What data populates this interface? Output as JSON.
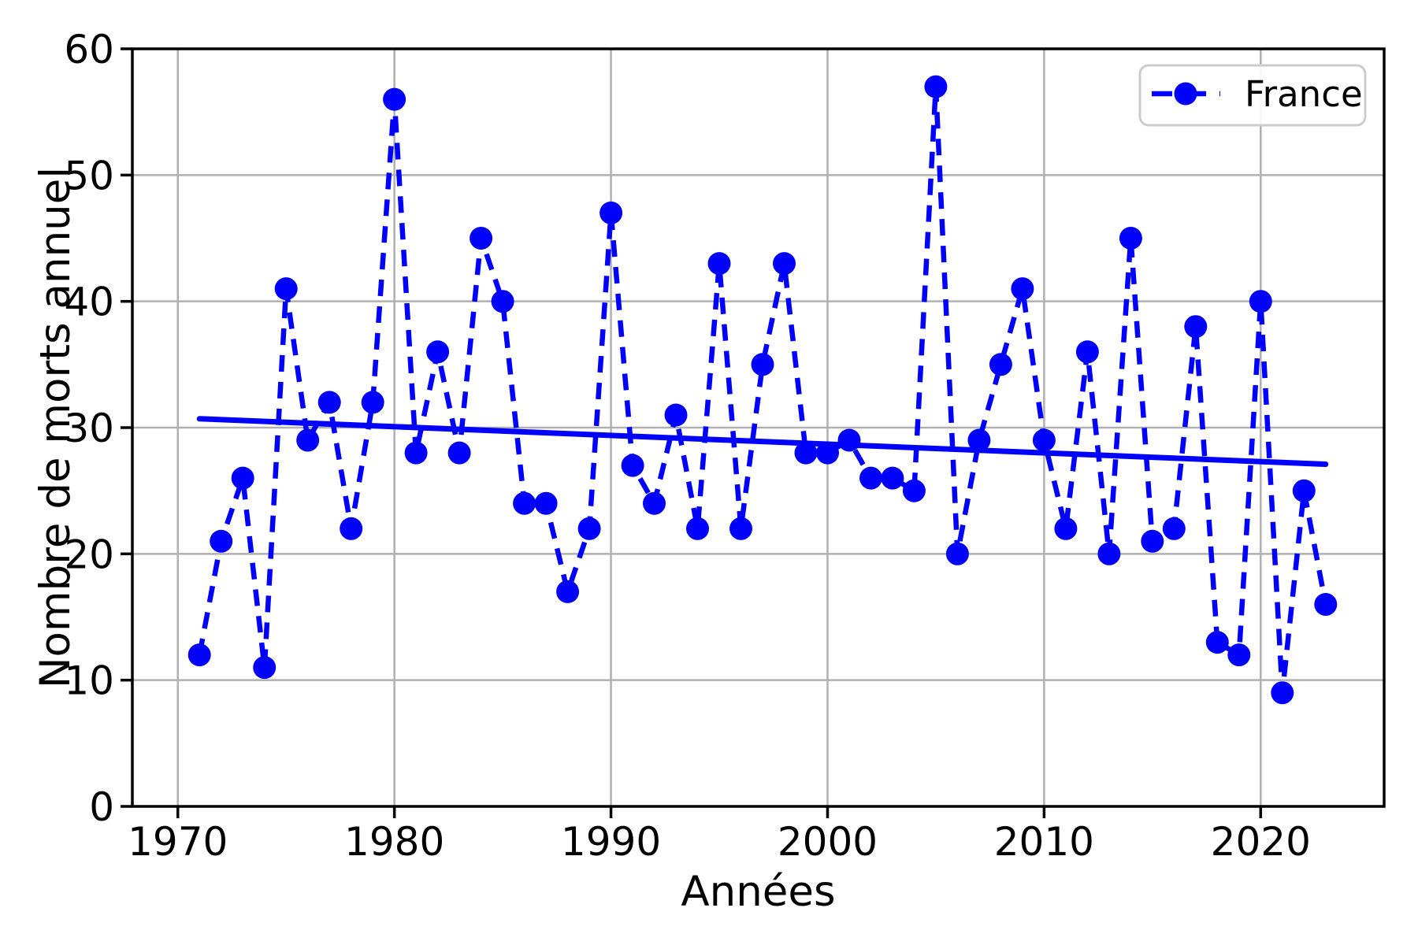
{
  "chart_data": {
    "type": "line",
    "title": "",
    "xlabel": "Années",
    "ylabel": "Nombre de morts annuel",
    "grid": true,
    "xlim": [
      1967.9,
      2025.7
    ],
    "ylim": [
      0,
      60
    ],
    "xticks": [
      1970,
      1980,
      1990,
      2000,
      2010,
      2020
    ],
    "yticks": [
      0,
      10,
      20,
      30,
      40,
      50,
      60
    ],
    "legend": {
      "position": "upper-right",
      "entries": [
        {
          "label": "France",
          "marker": "circle",
          "linestyle": "dashed",
          "color": "#0000ff"
        }
      ]
    },
    "series": [
      {
        "name": "France",
        "linestyle": "dashed",
        "marker": "circle",
        "color": "#0000ff",
        "x": [
          1971,
          1972,
          1973,
          1974,
          1975,
          1976,
          1977,
          1978,
          1979,
          1980,
          1981,
          1982,
          1983,
          1984,
          1985,
          1986,
          1987,
          1988,
          1989,
          1990,
          1991,
          1992,
          1993,
          1994,
          1995,
          1996,
          1997,
          1998,
          1999,
          2000,
          2001,
          2002,
          2003,
          2004,
          2005,
          2006,
          2007,
          2008,
          2009,
          2010,
          2011,
          2012,
          2013,
          2014,
          2015,
          2016,
          2017,
          2018,
          2019,
          2020,
          2021,
          2022,
          2023
        ],
        "y": [
          12,
          21,
          26,
          11,
          41,
          29,
          32,
          22,
          32,
          56,
          28,
          36,
          28,
          45,
          40,
          24,
          24,
          17,
          22,
          47,
          27,
          24,
          31,
          22,
          43,
          22,
          35,
          43,
          28,
          28,
          29,
          26,
          26,
          25,
          57,
          20,
          29,
          35,
          41,
          29,
          22,
          36,
          20,
          45,
          21,
          22,
          38,
          13,
          12,
          40,
          9,
          25,
          16
        ]
      },
      {
        "name": "linear-trend",
        "linestyle": "solid",
        "marker": "none",
        "color": "#0000ff",
        "x": [
          1971,
          2023
        ],
        "y": [
          30.7,
          27.1
        ]
      }
    ]
  },
  "colors": {
    "accent": "#0000ff",
    "grid": "#b0b0b0",
    "axis": "#000000",
    "legend_border": "#cccccc",
    "background": "#ffffff"
  }
}
